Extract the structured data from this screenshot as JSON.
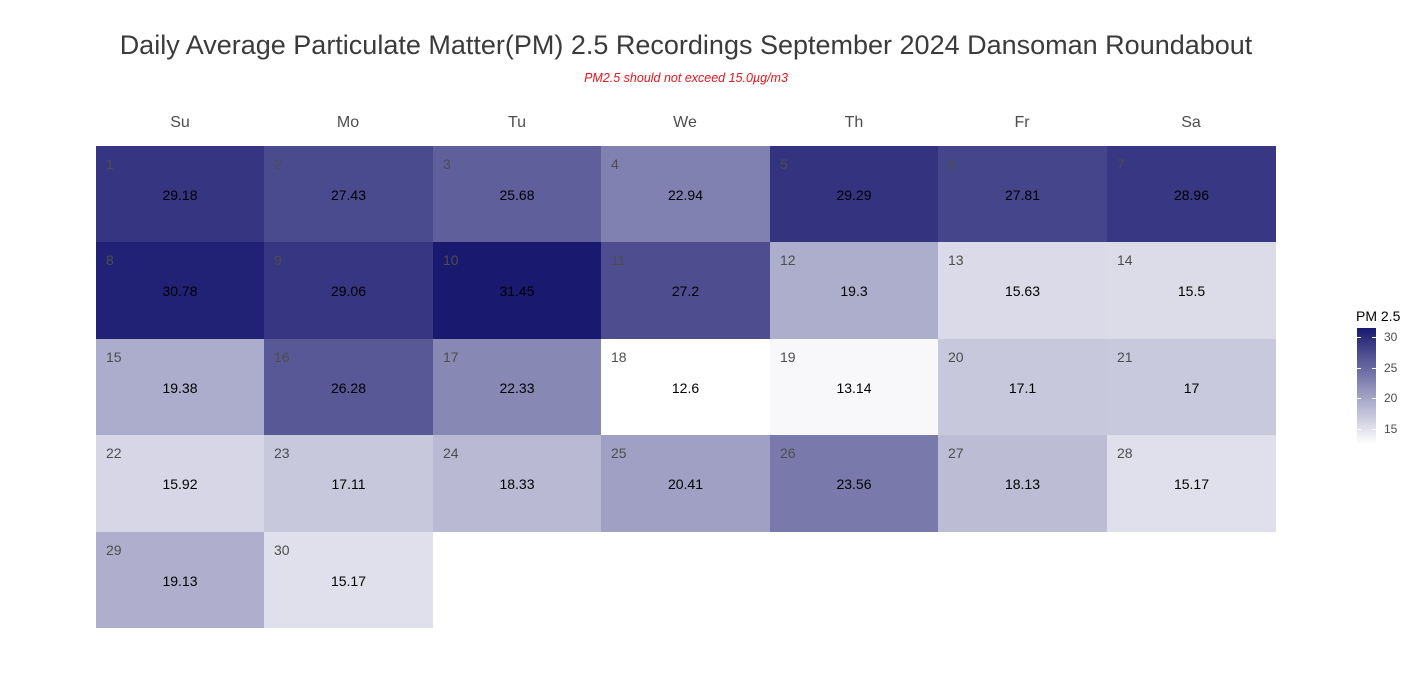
{
  "chart_data": {
    "type": "heatmap",
    "title": "Daily Average Particulate Matter(PM) 2.5 Recordings September 2024 Dansoman Roundabout",
    "subtitle": "PM2.5 should not exceed 15.0µg/m3",
    "weekdays": [
      "Su",
      "Mo",
      "Tu",
      "We",
      "Th",
      "Fr",
      "Sa"
    ],
    "first_weekday_index": 0,
    "days": [
      1,
      2,
      3,
      4,
      5,
      6,
      7,
      8,
      9,
      10,
      11,
      12,
      13,
      14,
      15,
      16,
      17,
      18,
      19,
      20,
      21,
      22,
      23,
      24,
      25,
      26,
      27,
      28,
      29,
      30
    ],
    "values": [
      29.18,
      27.43,
      25.68,
      22.94,
      29.29,
      27.81,
      28.96,
      30.78,
      29.06,
      31.45,
      27.2,
      19.3,
      15.63,
      15.5,
      19.38,
      26.28,
      22.33,
      12.6,
      13.14,
      17.1,
      17,
      15.92,
      17.11,
      18.33,
      20.41,
      23.56,
      18.13,
      15.17,
      19.13,
      15.17
    ],
    "value_labels": [
      "29.18",
      "27.43",
      "25.68",
      "22.94",
      "29.29",
      "27.81",
      "28.96",
      "30.78",
      "29.06",
      "31.45",
      "27.2",
      "19.3",
      "15.63",
      "15.5",
      "19.38",
      "26.28",
      "22.33",
      "12.6",
      "13.14",
      "17.1",
      "17",
      "15.92",
      "17.11",
      "18.33",
      "20.41",
      "23.56",
      "18.13",
      "15.17",
      "19.13",
      "15.17"
    ],
    "legend": {
      "title": "PM 2.5",
      "ticks": [
        15,
        20,
        25,
        30
      ],
      "tick_labels": [
        "15",
        "20",
        "25",
        "30"
      ],
      "range": [
        12.6,
        31.45
      ],
      "placement": "right"
    },
    "colors": {
      "low": "#ffffff",
      "high": "#191970"
    }
  }
}
